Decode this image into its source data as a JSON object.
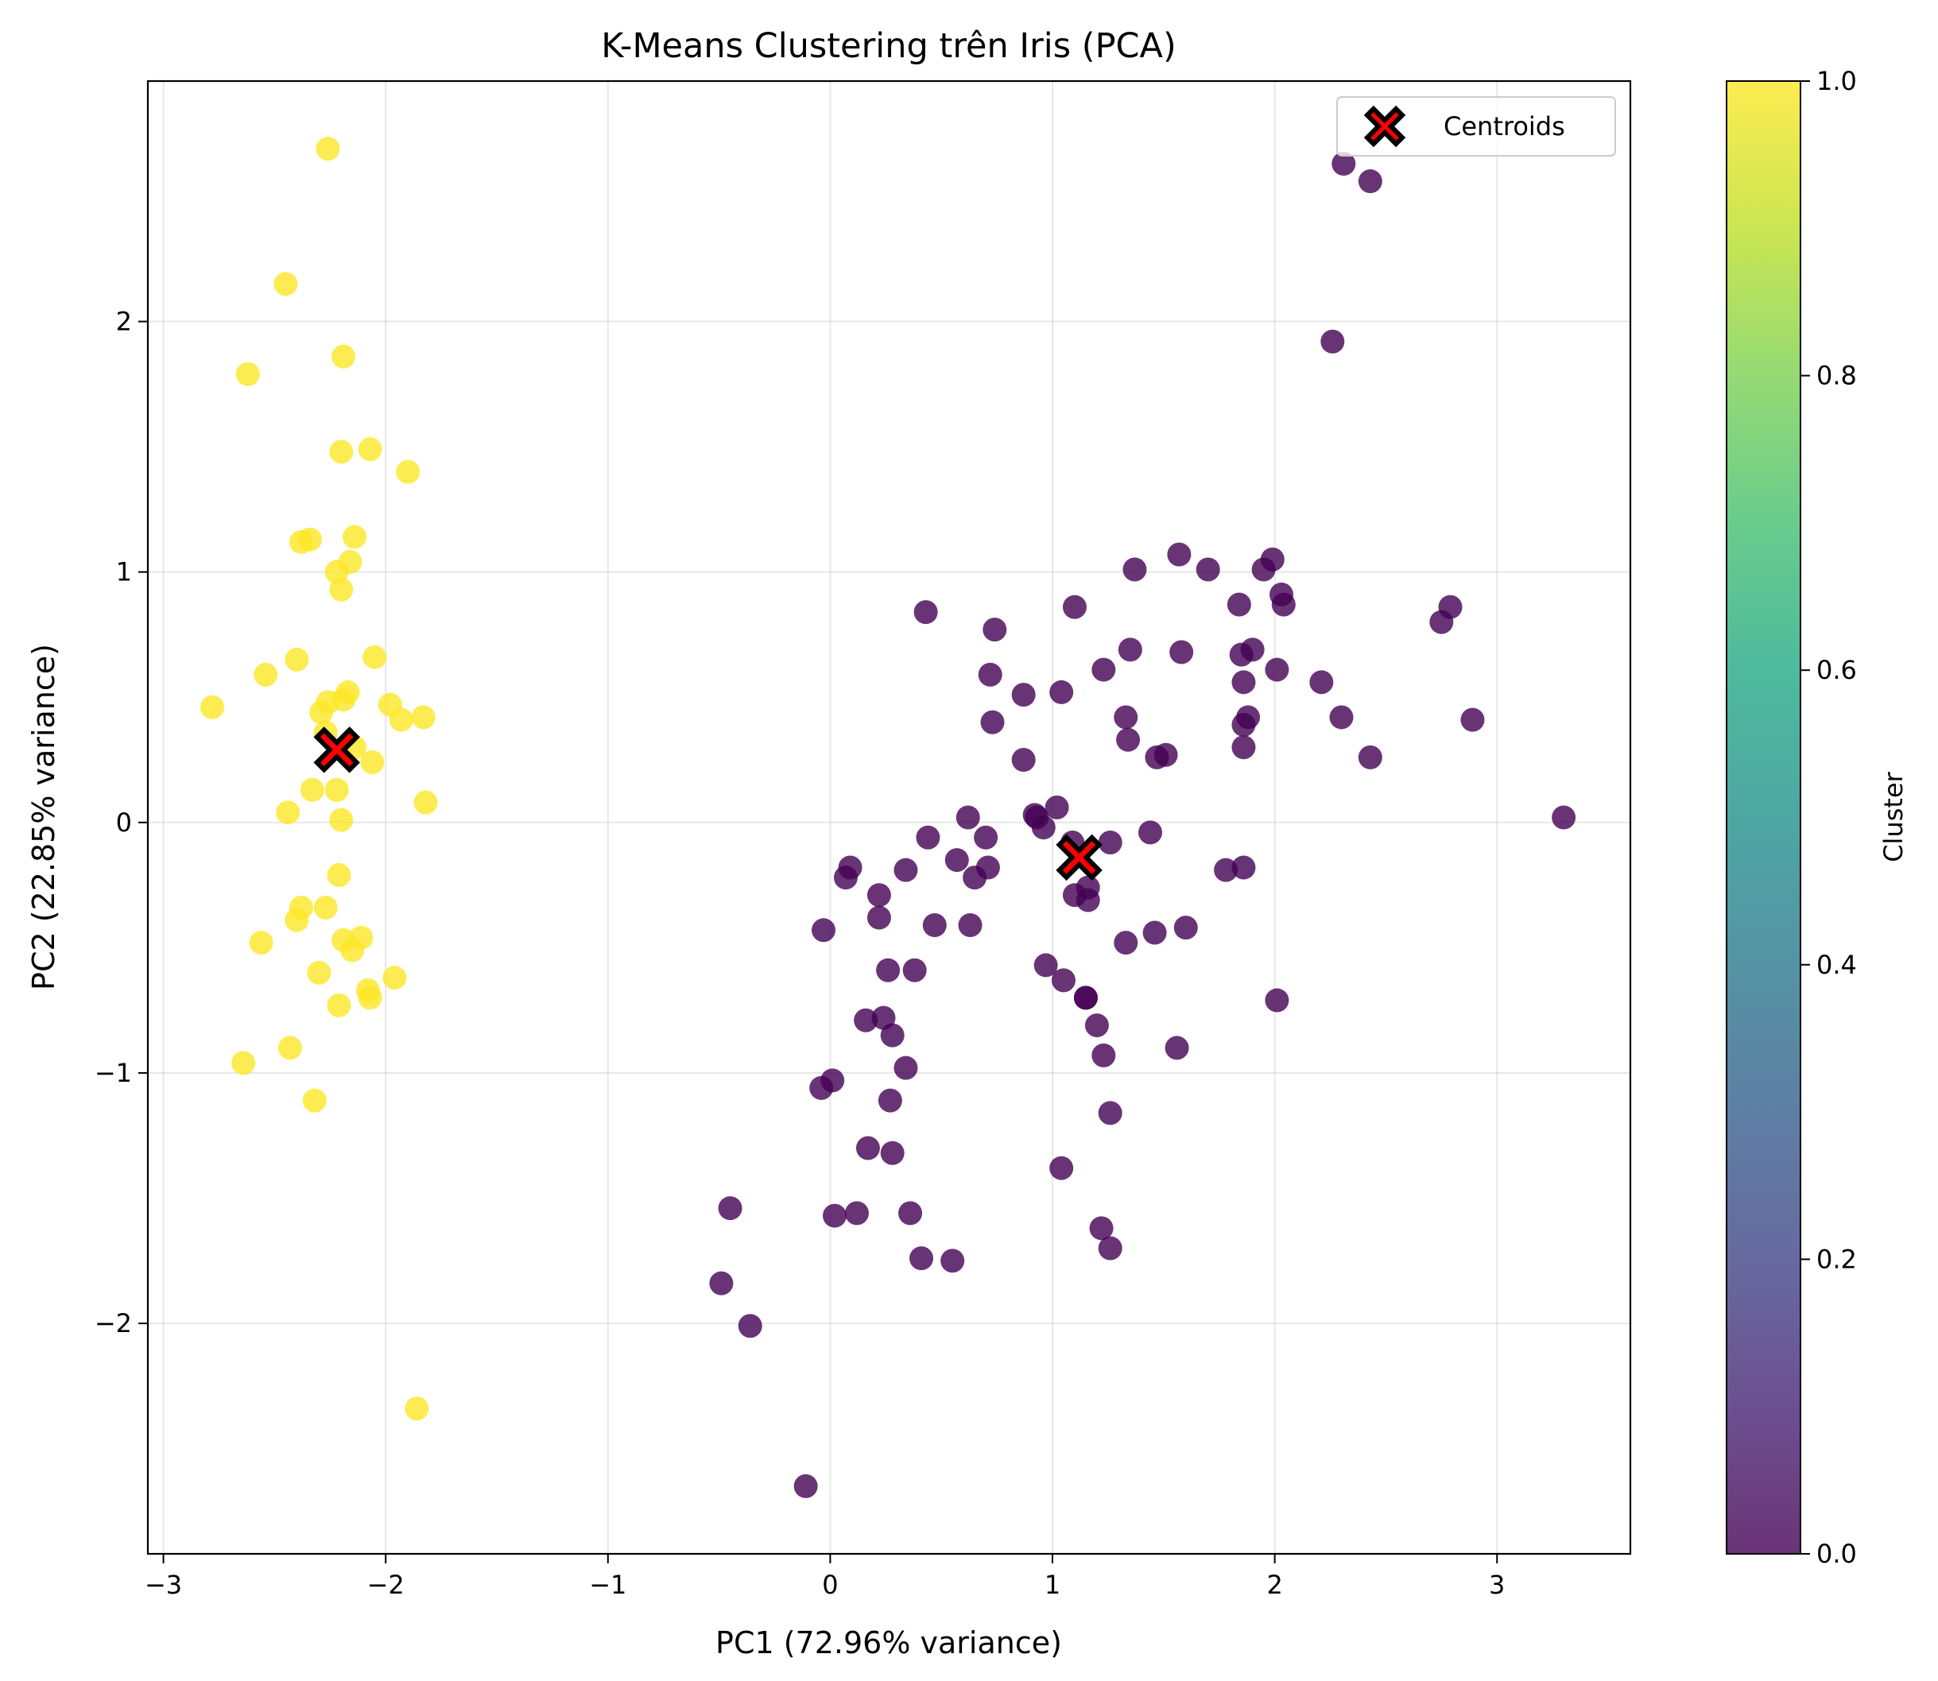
{
  "chart_data": {
    "type": "scatter",
    "title": "K-Means Clustering trên Iris (PCA)",
    "xlabel": "PC1 (72.96% variance)",
    "ylabel": "PC2 (22.85% variance)",
    "xlim": [
      -3.07,
      3.6
    ],
    "ylim": [
      -2.92,
      2.96
    ],
    "xticks": [
      -3,
      -2,
      -1,
      0,
      1,
      2,
      3
    ],
    "yticks": [
      -2,
      -1,
      0,
      1,
      2
    ],
    "grid": true,
    "legend": {
      "position": "top-right",
      "entries": [
        "Centroids"
      ]
    },
    "colorbar": {
      "label": "Cluster",
      "range": [
        0,
        1
      ],
      "ticks": [
        0.0,
        0.2,
        0.4,
        0.6,
        0.8,
        1.0
      ],
      "colormap": [
        "#440154",
        "#482475",
        "#414487",
        "#355f8d",
        "#2a788e",
        "#21918c",
        "#22a884",
        "#44bf70",
        "#7ad151",
        "#bddf26",
        "#fde725"
      ]
    },
    "point_alpha": 0.8,
    "series": [
      {
        "cluster": 1,
        "color": "#fde725",
        "points": [
          [
            -2.26,
            2.69
          ],
          [
            -2.45,
            2.15
          ],
          [
            -2.62,
            1.79
          ],
          [
            -2.19,
            1.86
          ],
          [
            -2.2,
            1.48
          ],
          [
            -2.07,
            1.49
          ],
          [
            -1.9,
            1.4
          ],
          [
            -2.38,
            1.12
          ],
          [
            -2.34,
            1.13
          ],
          [
            -2.14,
            1.14
          ],
          [
            -2.22,
            1.0
          ],
          [
            -2.16,
            1.04
          ],
          [
            -2.2,
            0.93
          ],
          [
            -2.05,
            0.66
          ],
          [
            -2.4,
            0.65
          ],
          [
            -2.54,
            0.59
          ],
          [
            -2.78,
            0.46
          ],
          [
            -2.26,
            0.48
          ],
          [
            -2.29,
            0.44
          ],
          [
            -2.17,
            0.52
          ],
          [
            -2.19,
            0.49
          ],
          [
            -1.98,
            0.47
          ],
          [
            -1.83,
            0.42
          ],
          [
            -1.93,
            0.41
          ],
          [
            -2.27,
            0.36
          ],
          [
            -2.14,
            0.3
          ],
          [
            -2.06,
            0.24
          ],
          [
            -2.33,
            0.13
          ],
          [
            -2.22,
            0.13
          ],
          [
            -2.44,
            0.04
          ],
          [
            -1.82,
            0.08
          ],
          [
            -2.2,
            0.01
          ],
          [
            -2.21,
            -0.21
          ],
          [
            -2.38,
            -0.34
          ],
          [
            -2.27,
            -0.34
          ],
          [
            -2.4,
            -0.39
          ],
          [
            -2.19,
            -0.47
          ],
          [
            -2.11,
            -0.46
          ],
          [
            -2.15,
            -0.51
          ],
          [
            -2.56,
            -0.48
          ],
          [
            -2.3,
            -0.6
          ],
          [
            -1.96,
            -0.62
          ],
          [
            -2.08,
            -0.67
          ],
          [
            -2.07,
            -0.7
          ],
          [
            -2.21,
            -0.73
          ],
          [
            -2.43,
            -0.9
          ],
          [
            -2.64,
            -0.96
          ],
          [
            -2.32,
            -1.11
          ],
          [
            -1.86,
            -2.34
          ]
        ]
      },
      {
        "cluster": 0,
        "color": "#440154",
        "points": [
          [
            2.31,
            2.63
          ],
          [
            2.43,
            2.56
          ],
          [
            2.26,
            1.92
          ],
          [
            1.57,
            1.07
          ],
          [
            1.99,
            1.05
          ],
          [
            1.37,
            1.01
          ],
          [
            1.7,
            1.01
          ],
          [
            1.95,
            1.01
          ],
          [
            2.03,
            0.91
          ],
          [
            2.04,
            0.87
          ],
          [
            1.84,
            0.87
          ],
          [
            1.1,
            0.86
          ],
          [
            2.79,
            0.86
          ],
          [
            2.75,
            0.8
          ],
          [
            0.43,
            0.84
          ],
          [
            0.74,
            0.77
          ],
          [
            1.35,
            0.69
          ],
          [
            1.9,
            0.69
          ],
          [
            1.85,
            0.67
          ],
          [
            1.58,
            0.68
          ],
          [
            1.23,
            0.61
          ],
          [
            2.01,
            0.61
          ],
          [
            0.72,
            0.59
          ],
          [
            2.21,
            0.56
          ],
          [
            1.86,
            0.56
          ],
          [
            1.04,
            0.52
          ],
          [
            0.87,
            0.51
          ],
          [
            1.33,
            0.42
          ],
          [
            2.3,
            0.42
          ],
          [
            2.89,
            0.41
          ],
          [
            1.88,
            0.42
          ],
          [
            1.86,
            0.39
          ],
          [
            0.73,
            0.4
          ],
          [
            1.34,
            0.33
          ],
          [
            1.86,
            0.3
          ],
          [
            1.51,
            0.27
          ],
          [
            1.47,
            0.26
          ],
          [
            2.43,
            0.26
          ],
          [
            0.87,
            0.25
          ],
          [
            1.02,
            0.06
          ],
          [
            0.92,
            0.03
          ],
          [
            0.62,
            0.02
          ],
          [
            0.93,
            0.02
          ],
          [
            3.3,
            0.02
          ],
          [
            0.96,
            -0.02
          ],
          [
            0.44,
            -0.06
          ],
          [
            0.7,
            -0.06
          ],
          [
            1.26,
            -0.08
          ],
          [
            1.44,
            -0.04
          ],
          [
            1.09,
            -0.08
          ],
          [
            0.57,
            -0.15
          ],
          [
            0.09,
            -0.18
          ],
          [
            0.07,
            -0.22
          ],
          [
            0.71,
            -0.18
          ],
          [
            0.34,
            -0.19
          ],
          [
            1.78,
            -0.19
          ],
          [
            1.86,
            -0.18
          ],
          [
            0.65,
            -0.22
          ],
          [
            1.16,
            -0.26
          ],
          [
            1.1,
            -0.29
          ],
          [
            0.22,
            -0.29
          ],
          [
            1.16,
            -0.31
          ],
          [
            0.22,
            -0.38
          ],
          [
            0.47,
            -0.41
          ],
          [
            0.63,
            -0.41
          ],
          [
            -0.03,
            -0.43
          ],
          [
            1.6,
            -0.42
          ],
          [
            1.46,
            -0.44
          ],
          [
            1.33,
            -0.48
          ],
          [
            0.97,
            -0.57
          ],
          [
            0.38,
            -0.59
          ],
          [
            0.26,
            -0.59
          ],
          [
            1.05,
            -0.63
          ],
          [
            1.15,
            -0.7
          ],
          [
            1.15,
            -0.7
          ],
          [
            2.01,
            -0.71
          ],
          [
            0.16,
            -0.79
          ],
          [
            0.24,
            -0.78
          ],
          [
            1.2,
            -0.81
          ],
          [
            0.28,
            -0.85
          ],
          [
            1.56,
            -0.9
          ],
          [
            1.23,
            -0.93
          ],
          [
            0.34,
            -0.98
          ],
          [
            0.01,
            -1.03
          ],
          [
            -0.04,
            -1.06
          ],
          [
            0.27,
            -1.11
          ],
          [
            1.26,
            -1.16
          ],
          [
            0.17,
            -1.3
          ],
          [
            0.28,
            -1.32
          ],
          [
            1.04,
            -1.38
          ],
          [
            -0.45,
            -1.54
          ],
          [
            0.02,
            -1.57
          ],
          [
            0.12,
            -1.56
          ],
          [
            0.36,
            -1.56
          ],
          [
            1.22,
            -1.62
          ],
          [
            1.26,
            -1.7
          ],
          [
            0.41,
            -1.74
          ],
          [
            0.55,
            -1.75
          ],
          [
            -0.49,
            -1.84
          ],
          [
            -0.36,
            -2.01
          ],
          [
            -0.11,
            -2.65
          ]
        ]
      }
    ],
    "centroids": [
      [
        -2.22,
        0.29
      ],
      [
        1.12,
        -0.14
      ]
    ]
  }
}
